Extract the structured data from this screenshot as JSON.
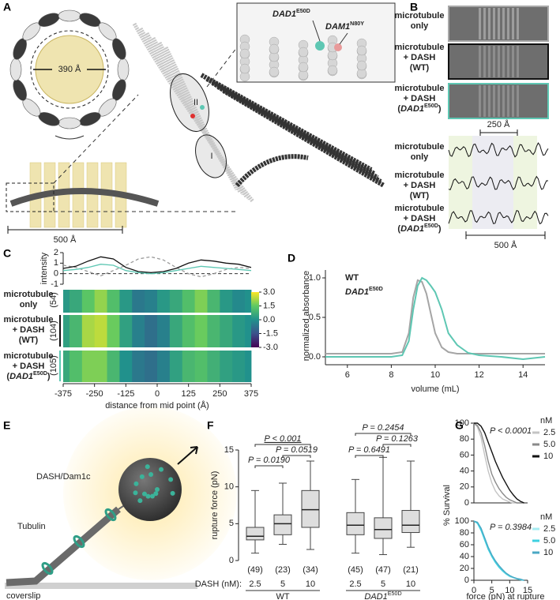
{
  "figure": {
    "panel_labels": [
      "A",
      "B",
      "C",
      "D",
      "E",
      "F",
      "G"
    ],
    "panel_a": {
      "diameter": "390 Å",
      "scale_bar": "500 Å",
      "site_labels": [
        "II",
        "I"
      ],
      "inset_labels": [
        {
          "name": "DAD1",
          "sup": "E50D"
        },
        {
          "name": "DAM1",
          "sup": "N80Y"
        }
      ]
    },
    "panel_b": {
      "row_labels": [
        [
          "microtubule",
          "only"
        ],
        [
          "microtubule",
          "+ DASH",
          "(WT)"
        ],
        [
          "microtubule",
          "+ DASH",
          {
            "pre": "(",
            "name": "DAD1",
            "sup": "E50D",
            "post": ")"
          }
        ]
      ],
      "row_colors": [
        "#a8a8a8",
        "#111111",
        "#5ec7b3"
      ],
      "scale_top": "250 Å",
      "scale_bottom": "500 Å"
    },
    "panel_c": {
      "row_counts": [
        "(54)",
        "(104)",
        "(105)"
      ]
    },
    "panel_e": {
      "labels": [
        "DASH/Dam1c",
        "Tubulin",
        "coverslip"
      ]
    }
  },
  "chart_data": [
    {
      "type": "line",
      "ylabel": "intensity",
      "xlim": [
        -375,
        375
      ],
      "ylim": [
        -1,
        2
      ],
      "yticks": [
        -1,
        0,
        1,
        2
      ],
      "x": [
        -375,
        -325,
        -275,
        -225,
        -175,
        -125,
        -75,
        -25,
        25,
        75,
        125,
        175,
        225,
        275,
        325,
        375
      ],
      "series": [
        {
          "color": "#9a9a9a",
          "dash": true,
          "values": [
            0.8,
            0.6,
            0.2,
            -0.2,
            0.3,
            0.8,
            1.4,
            1.6,
            1.3,
            0.6,
            0,
            -0.3,
            0,
            0.4,
            0.6,
            0.5
          ]
        },
        {
          "color": "#111111",
          "values": [
            0.5,
            0.7,
            1.2,
            1.6,
            1.4,
            0.6,
            0.2,
            0.1,
            0.2,
            0.5,
            1.0,
            1.3,
            1.2,
            1.0,
            0.9,
            0.6
          ]
        },
        {
          "color": "#5ec7b3",
          "values": [
            0.3,
            0.4,
            0.6,
            0.9,
            0.8,
            0.3,
            0.1,
            0,
            0.1,
            0.3,
            0.5,
            0.7,
            0.6,
            0.5,
            0.4,
            0.3
          ]
        }
      ]
    },
    {
      "type": "heatmap",
      "xlabel": "distance from mid point (Å)",
      "colormap": "viridis",
      "xlim": [
        -375,
        375
      ],
      "xticks": [
        -375,
        -250,
        -125,
        0,
        125,
        250,
        375
      ],
      "x": [
        -375,
        -325,
        -275,
        -225,
        -175,
        -125,
        -75,
        -25,
        25,
        75,
        125,
        175,
        225,
        275,
        325,
        375
      ],
      "rows": [
        [
          0.2,
          0.6,
          1.4,
          2.0,
          1.2,
          0.2,
          -0.6,
          -0.4,
          0.2,
          0.6,
          1.2,
          1.8,
          1.0,
          0.2,
          -0.2,
          0.0
        ],
        [
          0.4,
          1.0,
          2.2,
          2.4,
          1.6,
          0.4,
          -0.4,
          -0.8,
          -0.4,
          0.6,
          1.2,
          1.6,
          1.0,
          0.6,
          0.2,
          0.0
        ],
        [
          0.6,
          1.2,
          1.8,
          1.8,
          1.0,
          0.0,
          -0.6,
          -0.8,
          -0.4,
          0.4,
          1.0,
          1.2,
          0.8,
          0.4,
          0.2,
          0.0
        ]
      ],
      "clim": [
        -3,
        3
      ],
      "cticks": [
        {
          "value": 3,
          "label": "3.0"
        },
        {
          "value": 1.5,
          "label": "1.5"
        },
        {
          "value": 0,
          "label": "0.0"
        },
        {
          "value": -1.5,
          "label": "-1.5"
        },
        {
          "value": -3,
          "label": "-3.0"
        }
      ]
    },
    {
      "type": "line",
      "xlabel": "volume (mL)",
      "ylabel": "normalized absorbance",
      "xlim": [
        5,
        15
      ],
      "ylim": [
        -0.1,
        1.1
      ],
      "xticks": [
        6,
        8,
        10,
        12,
        14
      ],
      "yticks": [
        {
          "value": 0,
          "label": "0.0"
        },
        {
          "value": 0.5,
          "label": "0.5"
        },
        {
          "value": 1,
          "label": "1.0"
        }
      ],
      "x": [
        5,
        6,
        7,
        8,
        8.5,
        8.8,
        9,
        9.2,
        9.4,
        9.6,
        9.8,
        10,
        10.3,
        10.6,
        11,
        11.5,
        12,
        13,
        14,
        15
      ],
      "series": [
        {
          "name": "WT",
          "color": "#a5a5a5",
          "values": [
            0.04,
            0.04,
            0.04,
            0.04,
            0.06,
            0.3,
            0.75,
            0.97,
            0.95,
            0.8,
            0.55,
            0.3,
            0.12,
            0.06,
            0.04,
            0.04,
            0.04,
            0.04,
            0.04,
            0.04
          ]
        },
        {
          "name": "DAD1",
          "sup": "E50D",
          "color": "#5ec7b3",
          "values": [
            0,
            0,
            0,
            0,
            0.02,
            0.2,
            0.6,
            0.9,
            1.0,
            0.97,
            0.9,
            0.82,
            0.6,
            0.3,
            0.15,
            0.05,
            0.02,
            0,
            -0.03,
            0
          ]
        }
      ]
    },
    {
      "type": "box",
      "ylabel": "rupture force (pN)",
      "x_prefix": "DASH (nM):",
      "ylim": [
        0,
        15
      ],
      "yticks": [
        0,
        5,
        10,
        15
      ],
      "categories": [
        "2.5",
        "5",
        "10",
        "2.5",
        "5",
        "10"
      ],
      "groups": [
        {
          "name": "WT"
        },
        {
          "name": "DAD1",
          "sup": "E50D"
        }
      ],
      "group_colors": [
        "#111111",
        "#5ec7b3"
      ],
      "n_labels": [
        "(49)",
        "(23)",
        "(34)",
        "(45)",
        "(47)",
        "(21)"
      ],
      "p_values": [
        [
          "P < 0.001",
          "P = 0.0519",
          "P = 0.0190"
        ],
        [
          "P = 0.2454",
          "P = 0.1263",
          "P = 0.6491"
        ]
      ],
      "box_color": "#dedede",
      "boxes": [
        {
          "min": 1,
          "q1": 2.8,
          "median": 3.3,
          "q3": 4.5,
          "max": 9.5
        },
        {
          "min": 2.2,
          "q1": 3.5,
          "median": 5,
          "q3": 6.2,
          "max": 10.5
        },
        {
          "min": 1.5,
          "q1": 4.5,
          "median": 6.9,
          "q3": 9.5,
          "max": 13.5
        },
        {
          "min": 1,
          "q1": 3.5,
          "median": 4.8,
          "q3": 6.5,
          "max": 11
        },
        {
          "min": 0.8,
          "q1": 3,
          "median": 4.2,
          "q3": 5.8,
          "max": 14
        },
        {
          "min": 1.8,
          "q1": 3.8,
          "median": 4.8,
          "q3": 6.8,
          "max": 13.5
        }
      ]
    },
    {
      "type": "line",
      "ylabel": "% Survival",
      "annotation": "P < 0.0001",
      "legend_title": "nM",
      "xlim": [
        0,
        15
      ],
      "ylim": [
        0,
        100
      ],
      "yticks": [
        0,
        20,
        40,
        60,
        80,
        100
      ],
      "x": [
        0,
        1,
        2,
        3,
        4,
        5,
        6,
        7,
        8,
        9,
        10,
        11,
        12,
        13,
        14
      ],
      "series": [
        {
          "name": "2.5",
          "color": "#c4c4c4",
          "values": [
            100,
            95,
            82,
            60,
            40,
            25,
            15,
            9,
            5,
            3,
            1,
            0,
            0,
            0,
            0
          ]
        },
        {
          "name": "5.0",
          "color": "#8a8a8a",
          "values": [
            100,
            97,
            88,
            72,
            52,
            36,
            26,
            18,
            12,
            7,
            4,
            2,
            0,
            0,
            0
          ]
        },
        {
          "name": "10",
          "color": "#111111",
          "values": [
            100,
            100,
            96,
            88,
            76,
            64,
            52,
            42,
            32,
            24,
            16,
            10,
            5,
            2,
            0
          ]
        }
      ]
    },
    {
      "type": "line",
      "xlabel": "force (pN) at rupture",
      "annotation": "P = 0.3984",
      "legend_title": "nM",
      "xlim": [
        0,
        15
      ],
      "ylim": [
        0,
        100
      ],
      "xticks": [
        0,
        5,
        10,
        15
      ],
      "yticks": [
        0,
        20,
        40,
        60,
        80,
        100
      ],
      "x": [
        0,
        1,
        2,
        3,
        4,
        5,
        6,
        7,
        8,
        9,
        10,
        11,
        12,
        13,
        14
      ],
      "series": [
        {
          "name": "2.5",
          "color": "#a6ecf2",
          "values": [
            100,
            97,
            86,
            70,
            54,
            40,
            30,
            22,
            15,
            10,
            6,
            4,
            2,
            1,
            0
          ]
        },
        {
          "name": "5.0",
          "color": "#3fd0e0",
          "values": [
            100,
            96,
            84,
            68,
            52,
            40,
            30,
            22,
            16,
            11,
            7,
            5,
            3,
            1,
            0
          ]
        },
        {
          "name": "10",
          "color": "#4aa8c4",
          "values": [
            100,
            98,
            88,
            72,
            56,
            43,
            33,
            25,
            18,
            12,
            8,
            5,
            3,
            2,
            0
          ]
        }
      ]
    }
  ]
}
